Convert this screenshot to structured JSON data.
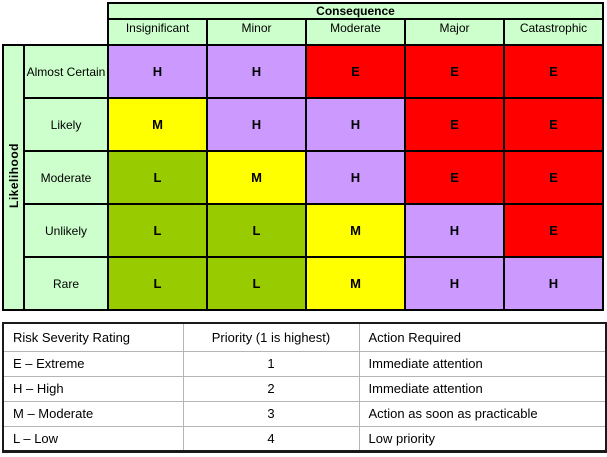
{
  "chart_data": [
    {
      "type": "heatmap",
      "title": "Consequence",
      "ylabel": "Likelihood",
      "x_categories": [
        "Insignificant",
        "Minor",
        "Moderate",
        "Major",
        "Catastrophic"
      ],
      "y_categories": [
        "Almost Certain",
        "Likely",
        "Moderate",
        "Unlikely",
        "Rare"
      ],
      "values": [
        [
          "H",
          "H",
          "E",
          "E",
          "E"
        ],
        [
          "M",
          "H",
          "H",
          "E",
          "E"
        ],
        [
          "L",
          "M",
          "H",
          "E",
          "E"
        ],
        [
          "L",
          "L",
          "M",
          "H",
          "E"
        ],
        [
          "L",
          "L",
          "M",
          "H",
          "H"
        ]
      ],
      "color_map": {
        "E": "#ff0000",
        "H": "#cc99ff",
        "M": "#ffff00",
        "L": "#99cc00",
        "axis_header_bg": "#ccffcc"
      },
      "legend_position": "bottom"
    },
    {
      "type": "table",
      "columns": [
        "Risk Severity Rating",
        "Priority (1 is highest)",
        "Action Required"
      ],
      "rows": [
        [
          "E – Extreme",
          "1",
          "Immediate attention"
        ],
        [
          "H – High",
          "2",
          "Immediate attention"
        ],
        [
          "M – Moderate",
          "3",
          "Action as soon as practicable"
        ],
        [
          "L – Low",
          "4",
          "Low priority"
        ]
      ]
    }
  ]
}
